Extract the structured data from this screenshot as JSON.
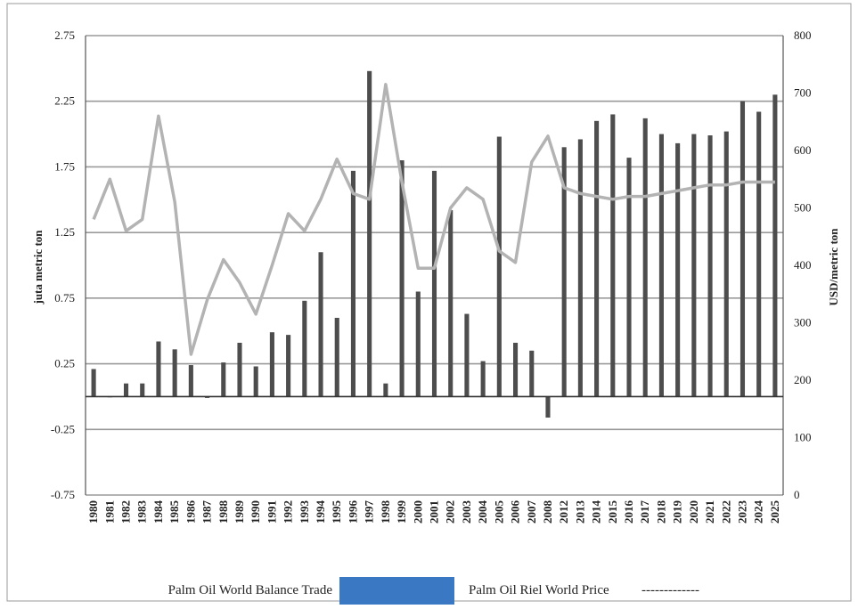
{
  "chart_data": {
    "type": "bar",
    "categories": [
      "1980",
      "1981",
      "1982",
      "1983",
      "1984",
      "1985",
      "1986",
      "1987",
      "1988",
      "1989",
      "1990",
      "1991",
      "1992",
      "1993",
      "1994",
      "1995",
      "1996",
      "1997",
      "1998",
      "1999",
      "2000",
      "2001",
      "2002",
      "2003",
      "2004",
      "2005",
      "2006",
      "2007",
      "2008",
      "2012",
      "2013",
      "2014",
      "2015",
      "2016",
      "2017",
      "2018",
      "2019",
      "2020",
      "2021",
      "2022",
      "2023",
      "2024",
      "2025"
    ],
    "y_left": {
      "label": "juta metric ton",
      "ylim": [
        -0.75,
        2.75
      ],
      "ticks": [
        "2.75",
        "2.25",
        "1.75",
        "1.25",
        "0.75",
        "0.25",
        "-0.25",
        "-0.75"
      ],
      "tick_values": [
        2.75,
        2.25,
        1.75,
        1.25,
        0.75,
        0.25,
        -0.25,
        -0.75
      ]
    },
    "y_right": {
      "label": "USD/metric ton",
      "ylim": [
        0,
        800
      ],
      "ticks": [
        "800",
        "700",
        "600",
        "500",
        "400",
        "300",
        "200",
        "100",
        "0"
      ],
      "tick_values": [
        800,
        700,
        600,
        500,
        400,
        300,
        200,
        100,
        0
      ]
    },
    "series": [
      {
        "name": "Palm Oil World Balance Trade",
        "type": "bar",
        "axis": "left",
        "color": "#4d4d4d",
        "values": [
          0.21,
          0.0,
          0.1,
          0.1,
          0.42,
          0.36,
          0.24,
          -0.01,
          0.26,
          0.41,
          0.23,
          0.49,
          0.47,
          0.73,
          1.1,
          0.6,
          1.72,
          2.48,
          0.1,
          1.8,
          0.8,
          1.72,
          1.42,
          0.63,
          0.27,
          1.98,
          0.41,
          0.35,
          -0.16,
          1.9,
          1.96,
          2.1,
          2.15,
          1.82,
          2.12,
          2.0,
          1.93,
          2.0,
          1.99,
          2.02,
          2.25,
          2.17,
          2.3
        ]
      },
      {
        "name": "Palm Oil Riel World Price",
        "type": "line",
        "axis": "right",
        "color": "#b3b3b3",
        "values": [
          480,
          550,
          460,
          480,
          660,
          510,
          245,
          340,
          410,
          370,
          315,
          400,
          490,
          460,
          515,
          585,
          525,
          515,
          715,
          545,
          395,
          395,
          500,
          535,
          515,
          425,
          405,
          580,
          625,
          535,
          525,
          520,
          515,
          520,
          520,
          525,
          530,
          535,
          540,
          540,
          545,
          545,
          545
        ]
      }
    ],
    "grid": true,
    "legend": {
      "placement": "bottom",
      "bar_label": "Palm Oil World Balance Trade",
      "line_label": "Palm Oil Riel World Price",
      "bar_swatch_color": "#3a78c4",
      "line_marker": "-------------"
    }
  }
}
